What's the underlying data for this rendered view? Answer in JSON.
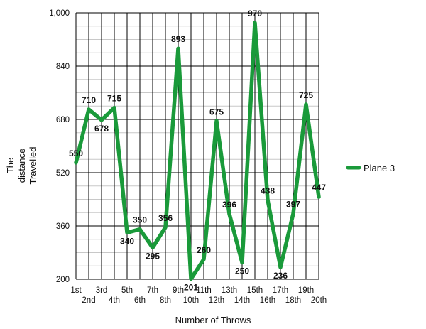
{
  "chart_data": {
    "type": "line",
    "x": [
      "1st",
      "2nd",
      "3rd",
      "4th",
      "5th",
      "6th",
      "7th",
      "8th",
      "9th",
      "10th",
      "11th",
      "12th",
      "13th",
      "14th",
      "15th",
      "16th",
      "17th",
      "18th",
      "19th",
      "20th"
    ],
    "series": [
      {
        "name": "Plane 3",
        "color": "#1a9a3a",
        "values": [
          550,
          710,
          678,
          715,
          340,
          350,
          295,
          356,
          893,
          201,
          260,
          675,
          396,
          250,
          970,
          438,
          236,
          397,
          725,
          447
        ]
      }
    ],
    "ylim": [
      200,
      1000
    ],
    "yticks": [
      "200",
      "360",
      "520",
      "680",
      "840",
      "1,000"
    ],
    "xlabel": "Number of Throws",
    "ylabel_lines": [
      "The",
      "distance",
      "Travelled"
    ],
    "grid": true,
    "legend": "right"
  }
}
